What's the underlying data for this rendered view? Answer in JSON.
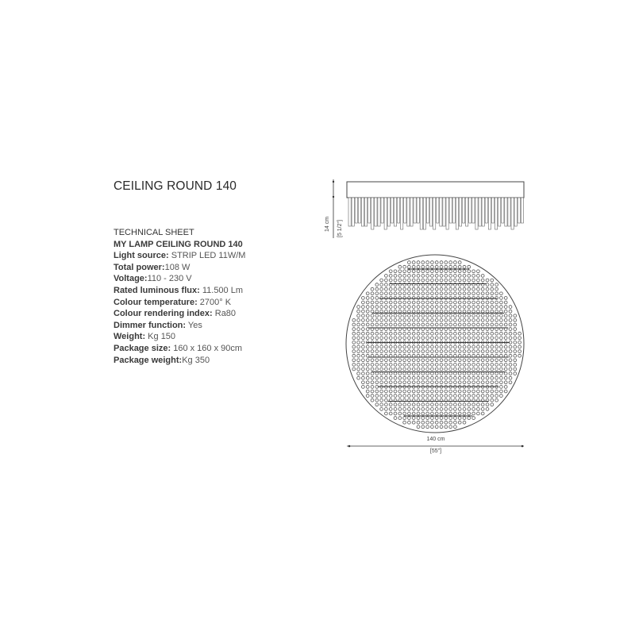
{
  "title": "CEILING ROUND 140",
  "sheet": {
    "heading": "TECHNICAL SHEET",
    "product": "MY LAMP CEILING ROUND 140",
    "specs": [
      {
        "label": "Light source:",
        "value": " STRIP LED 11W/M"
      },
      {
        "label": "Total power:",
        "value": "108  W"
      },
      {
        "label": "Voltage:",
        "value": "110 - 230 V"
      },
      {
        "label": "Rated luminous flux:",
        "value": " 11.500 Lm"
      },
      {
        "label": "Colour temperature:",
        "value": " 2700° K"
      },
      {
        "label": "Colour rendering index:",
        "value": " Ra80"
      },
      {
        "label": "Dimmer function:",
        "value": " Yes"
      },
      {
        "label": "Weight:",
        "value": " Kg 150"
      },
      {
        "label": "Package size:",
        "value": " 160 x 160 x 90cm"
      },
      {
        "label": "Package weight:",
        "value": "Kg 350"
      }
    ]
  },
  "drawing": {
    "height_cm": "14 cm",
    "height_in": "[5 1/2\"]",
    "diameter_cm": "140 cm",
    "diameter_in": "[55\"]"
  }
}
